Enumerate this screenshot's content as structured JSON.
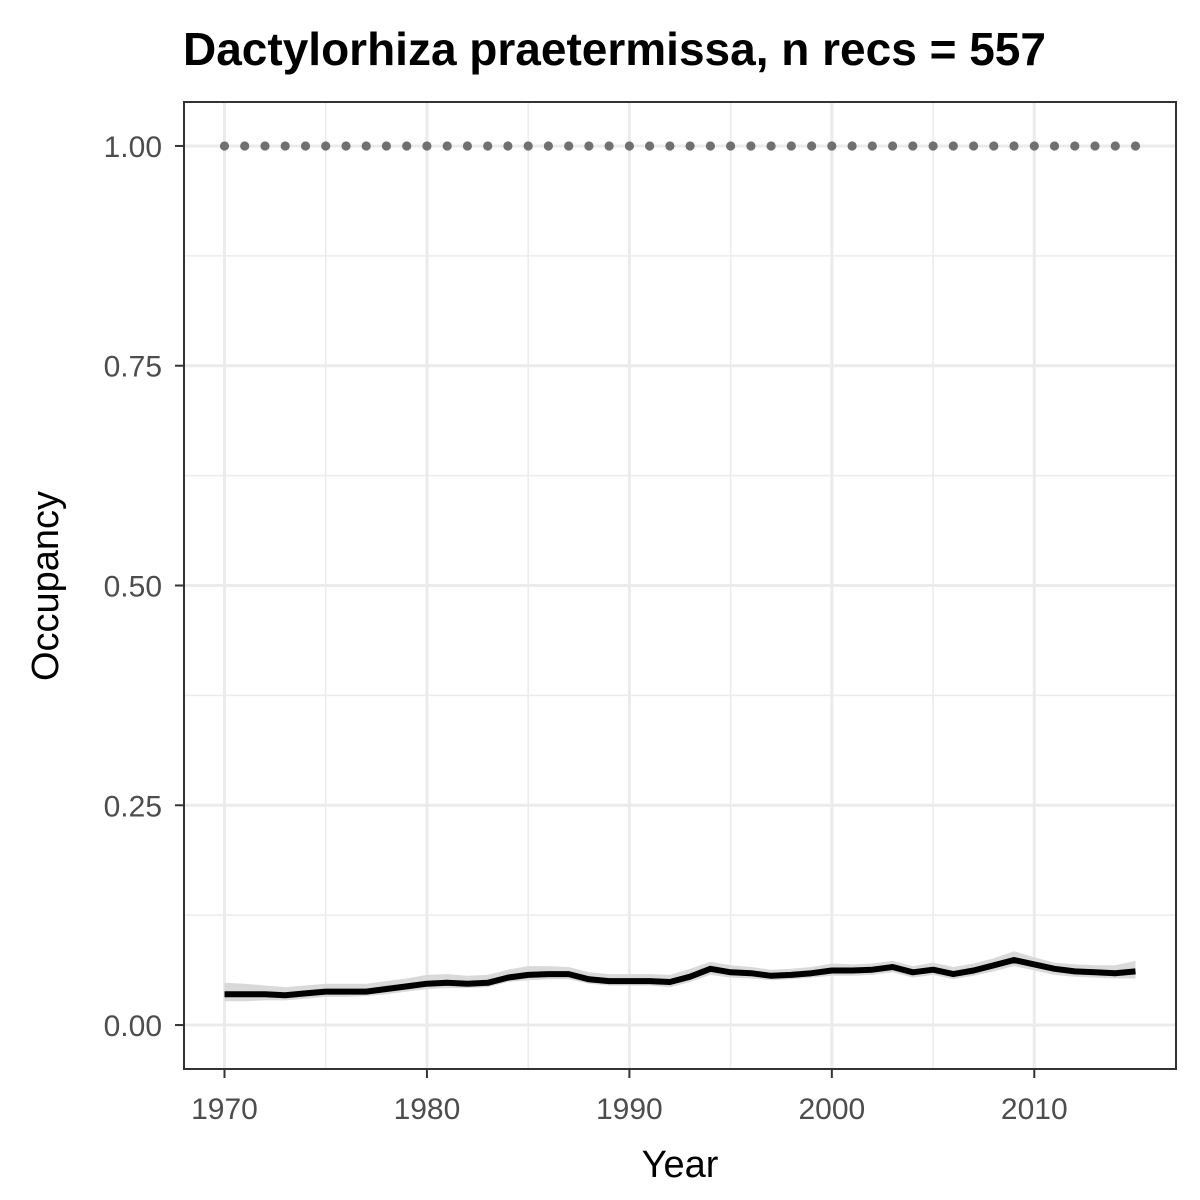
{
  "chart_data": {
    "type": "line",
    "title": "Dactylorhiza praetermissa, n recs = 557",
    "xlabel": "Year",
    "ylabel": "Occupancy",
    "xlim": [
      1968,
      2017
    ],
    "ylim": [
      -0.05,
      1.05
    ],
    "x_ticks": [
      1970,
      1980,
      1990,
      2000,
      2010
    ],
    "y_ticks": [
      0.0,
      0.25,
      0.5,
      0.75,
      1.0
    ],
    "x_tick_labels": [
      "1970",
      "1980",
      "1990",
      "2000",
      "2010"
    ],
    "y_tick_labels": [
      "0.00",
      "0.25",
      "0.50",
      "0.75",
      "1.00"
    ],
    "grid": true,
    "x": [
      1970,
      1971,
      1972,
      1973,
      1974,
      1975,
      1976,
      1977,
      1978,
      1979,
      1980,
      1981,
      1982,
      1983,
      1984,
      1985,
      1986,
      1987,
      1988,
      1989,
      1990,
      1991,
      1992,
      1993,
      1994,
      1995,
      1996,
      1997,
      1998,
      1999,
      2000,
      2001,
      2002,
      2003,
      2004,
      2005,
      2006,
      2007,
      2008,
      2009,
      2010,
      2011,
      2012,
      2013,
      2014,
      2015
    ],
    "series": [
      {
        "kind": "mean_line",
        "color": "#000000",
        "values": [
          0.035,
          0.035,
          0.035,
          0.034,
          0.036,
          0.038,
          0.038,
          0.038,
          0.041,
          0.044,
          0.047,
          0.048,
          0.047,
          0.048,
          0.054,
          0.057,
          0.058,
          0.058,
          0.052,
          0.05,
          0.05,
          0.05,
          0.049,
          0.055,
          0.064,
          0.06,
          0.059,
          0.056,
          0.057,
          0.059,
          0.062,
          0.062,
          0.063,
          0.066,
          0.06,
          0.063,
          0.058,
          0.062,
          0.068,
          0.074,
          0.069,
          0.064,
          0.061,
          0.06,
          0.059,
          0.061
        ]
      },
      {
        "kind": "ribbon",
        "color": "#d9d9d9",
        "lower": [
          0.027,
          0.027,
          0.028,
          0.028,
          0.03,
          0.032,
          0.032,
          0.033,
          0.035,
          0.038,
          0.041,
          0.042,
          0.042,
          0.043,
          0.049,
          0.051,
          0.052,
          0.052,
          0.047,
          0.045,
          0.045,
          0.045,
          0.043,
          0.049,
          0.057,
          0.054,
          0.053,
          0.051,
          0.052,
          0.054,
          0.056,
          0.056,
          0.057,
          0.06,
          0.054,
          0.057,
          0.052,
          0.056,
          0.061,
          0.067,
          0.062,
          0.057,
          0.055,
          0.054,
          0.053,
          0.053
        ],
        "upper": [
          0.048,
          0.047,
          0.045,
          0.043,
          0.045,
          0.047,
          0.047,
          0.047,
          0.05,
          0.053,
          0.057,
          0.058,
          0.056,
          0.057,
          0.063,
          0.067,
          0.067,
          0.066,
          0.06,
          0.058,
          0.058,
          0.058,
          0.057,
          0.064,
          0.072,
          0.068,
          0.066,
          0.063,
          0.064,
          0.066,
          0.07,
          0.069,
          0.07,
          0.073,
          0.067,
          0.071,
          0.066,
          0.07,
          0.076,
          0.084,
          0.077,
          0.071,
          0.069,
          0.068,
          0.068,
          0.073
        ]
      },
      {
        "kind": "dotted_line",
        "color": "#707070",
        "values": [
          1,
          1,
          1,
          1,
          1,
          1,
          1,
          1,
          1,
          1,
          1,
          1,
          1,
          1,
          1,
          1,
          1,
          1,
          1,
          1,
          1,
          1,
          1,
          1,
          1,
          1,
          1,
          1,
          1,
          1,
          1,
          1,
          1,
          1,
          1,
          1,
          1,
          1,
          1,
          1,
          1,
          1,
          1,
          1,
          1,
          1
        ]
      }
    ]
  }
}
